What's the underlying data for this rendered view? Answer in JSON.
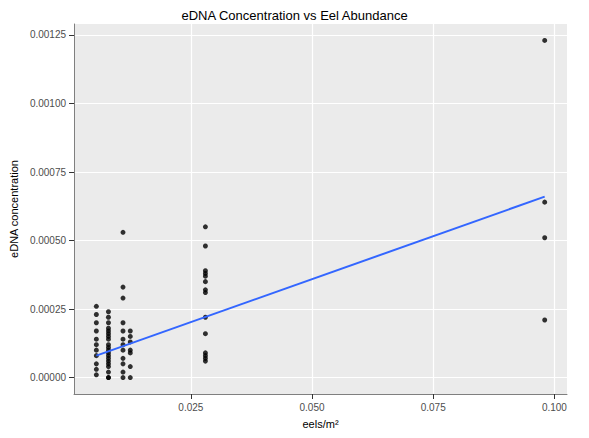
{
  "chart_data": {
    "type": "scatter",
    "title": "eDNA Concentration vs Eel Abundance",
    "x_label": "eels/m²",
    "y_label": "eDNA concentration",
    "xlim": [
      0.0009,
      0.1026
    ],
    "xticks": [
      0.025,
      {
        "value": 0.05,
        "label": "0.050"
      },
      0.075,
      {
        "value": 0.1,
        "label": "0.100"
      }
    ],
    "ylim": [
      -6e-05,
      0.00129
    ],
    "yticks": [
      {
        "value": 0,
        "label": "0.00000"
      },
      {
        "value": 0.00025,
        "label": "0.00025"
      },
      {
        "value": 0.0005,
        "label": "0.00050"
      },
      {
        "value": 0.00075,
        "label": "0.00075"
      },
      {
        "value": 0.001,
        "label": "0.00100"
      },
      {
        "value": 0.00125,
        "label": "0.00125"
      }
    ],
    "grid": true,
    "series": [
      {
        "type": "scatter",
        "color": "#000000",
        "marker": "circle",
        "x": [
          0.0055,
          0.0055,
          0.0055,
          0.0055,
          0.0055,
          0.0055,
          0.0055,
          0.0055,
          0.0055,
          0.0055,
          0.0055,
          0.008,
          0.008,
          0.008,
          0.008,
          0.008,
          0.008,
          0.008,
          0.008,
          0.008,
          0.008,
          0.008,
          0.008,
          0.008,
          0.008,
          0.008,
          0.008,
          0.008,
          0.008,
          0.008,
          0.008,
          0.011,
          0.011,
          0.011,
          0.011,
          0.011,
          0.011,
          0.011,
          0.011,
          0.011,
          0.011,
          0.011,
          0.011,
          0.0125,
          0.0125,
          0.0125,
          0.0125,
          0.0125,
          0.0125,
          0.0125,
          0.028,
          0.028,
          0.028,
          0.028,
          0.028,
          0.028,
          0.028,
          0.028,
          0.028,
          0.028,
          0.028,
          0.028,
          0.028,
          0.028,
          0.098,
          0.098,
          0.098,
          0.098
        ],
        "values": [
          0.00026,
          0.00023,
          0.0002,
          0.00017,
          0.00014,
          0.00012,
          0.0001,
          8e-05,
          5e-05,
          3e-05,
          1e-05,
          0.00024,
          0.00022,
          0.0002,
          0.00018,
          0.00017,
          0.00016,
          0.00015,
          0.00014,
          0.00012,
          0.00011,
          0.0001,
          9e-05,
          8e-05,
          7e-05,
          6e-05,
          5e-05,
          4e-05,
          2e-05,
          0.0,
          0.0,
          0.00053,
          0.00033,
          0.00029,
          0.0002,
          0.00017,
          0.00014,
          0.00012,
          0.0001,
          7e-05,
          5e-05,
          2e-05,
          0.0,
          0.00017,
          0.00015,
          0.00013,
          0.0001,
          9e-05,
          4e-05,
          0.0,
          0.00055,
          0.00048,
          0.00039,
          0.00038,
          0.00037,
          0.00035,
          0.00032,
          0.00031,
          0.00022,
          0.00016,
          9e-05,
          8e-05,
          7e-05,
          6e-05,
          0.00123,
          0.00064,
          0.00051,
          0.00021
        ]
      },
      {
        "type": "line",
        "color": "#3366FF",
        "line_style": "solid",
        "x": [
          0.0055,
          0.098
        ],
        "values": [
          8e-05,
          0.00066
        ]
      }
    ]
  }
}
